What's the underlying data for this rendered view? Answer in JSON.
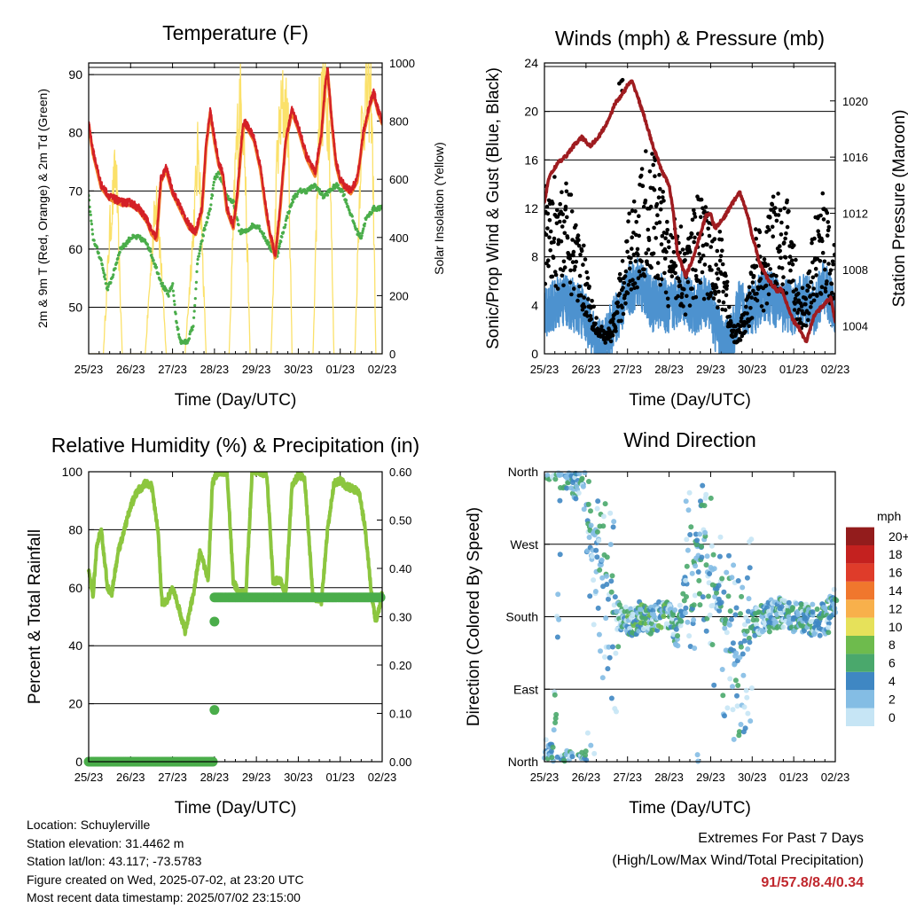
{
  "colors": {
    "t2m": "#d42027",
    "t9m": "#f3852d",
    "td": "#4aad4a",
    "solar": "#fbe16a",
    "wind": "#4d92cf",
    "gust": "#000000",
    "pressure": "#9f1c20",
    "rh": "#8cc63f",
    "precip": "#4aad4a",
    "extremes": "#c0272d"
  },
  "legend": {
    "title": "mph",
    "labels": [
      "0",
      "2",
      "4",
      "6",
      "8",
      "10",
      "12",
      "14",
      "16",
      "18",
      "20+"
    ],
    "colors": [
      "#c6e5f5",
      "#84bde4",
      "#3f87c3",
      "#4aa86c",
      "#6ebb4d",
      "#e6e15a",
      "#f8b04b",
      "#f0772d",
      "#df3c2a",
      "#c4211f",
      "#931c1c"
    ]
  },
  "chart_data": [
    {
      "type": "line",
      "title": "Temperature (F)",
      "xlabel": "Time (Day/UTC)",
      "ylabel": "2m & 9m T (Red, Orange) & 2m Td (Green)",
      "y2label": "Solar Insolation (Yellow)",
      "x_ticks": [
        "25/23",
        "26/23",
        "27/23",
        "28/23",
        "29/23",
        "30/23",
        "01/23",
        "02/23"
      ],
      "ylim": [
        42,
        92
      ],
      "y_ticks": [
        50,
        60,
        70,
        80,
        90
      ],
      "y2lim": [
        0,
        1000
      ],
      "y2_ticks": [
        0,
        200,
        400,
        600,
        800,
        1000
      ],
      "grid": true,
      "series": [
        {
          "name": "2m T",
          "x": [
            0,
            0.1,
            0.3,
            0.5,
            0.8,
            1.0,
            1.2,
            1.4,
            1.5,
            1.62,
            1.72,
            1.85,
            2.0,
            2.2,
            2.4,
            2.55,
            2.7,
            2.8,
            2.9,
            3.0,
            3.1,
            3.2,
            3.3,
            3.45,
            3.55,
            3.65,
            3.7,
            3.8,
            3.95,
            4.1,
            4.25,
            4.35,
            4.45,
            4.55,
            4.7,
            4.85,
            5.0,
            5.2,
            5.4,
            5.55,
            5.65,
            5.7,
            5.8,
            5.9,
            6.0,
            6.1,
            6.25,
            6.4,
            6.55,
            6.7,
            6.8,
            6.9,
            7.0
          ],
          "y": [
            82,
            77,
            71,
            69,
            68,
            68,
            67,
            65,
            63,
            62,
            72,
            74,
            70,
            67,
            64,
            63,
            67,
            78,
            84,
            79,
            75,
            73,
            67,
            64,
            70,
            79,
            82,
            81,
            79,
            74,
            66,
            62,
            59,
            66,
            79,
            84,
            81,
            76,
            73,
            80,
            89,
            91,
            82,
            75,
            72,
            71,
            70,
            72,
            80,
            85,
            87,
            84,
            82
          ]
        },
        {
          "name": "9m T",
          "x": [
            0,
            0.5,
            1.0,
            1.5,
            2.0,
            2.5,
            3.0,
            3.5,
            4.0,
            4.5,
            5.0,
            5.5,
            6.0,
            6.5,
            7.0
          ],
          "y": [
            81,
            70,
            69,
            64,
            71,
            64,
            80,
            65,
            80,
            60,
            82,
            74,
            72,
            79,
            82
          ]
        },
        {
          "name": "2m Td",
          "x": [
            0,
            0.1,
            0.2,
            0.3,
            0.45,
            0.6,
            0.75,
            0.9,
            1.0,
            1.2,
            1.4,
            1.6,
            1.75,
            1.9,
            2.0,
            2.1,
            2.2,
            2.35,
            2.5,
            2.6,
            2.75,
            2.9,
            3.0,
            3.1,
            3.3,
            3.45,
            3.6,
            3.75,
            3.9,
            4.05,
            4.2,
            4.35,
            4.5,
            4.6,
            4.75,
            4.9,
            5.05,
            5.2,
            5.4,
            5.6,
            5.75,
            5.9,
            6.05,
            6.2,
            6.3,
            6.4,
            6.5,
            6.6,
            6.8,
            7.0
          ],
          "y": [
            69,
            62,
            60,
            58,
            53,
            56,
            60,
            61,
            62,
            62,
            61,
            57,
            54,
            52,
            54,
            47,
            44,
            44,
            47,
            58,
            63,
            67,
            72,
            73,
            69,
            68,
            63,
            63,
            64,
            64,
            62,
            60,
            59,
            62,
            66,
            69,
            70,
            70,
            71,
            69,
            70,
            71,
            70,
            67,
            65,
            63,
            62,
            65,
            67,
            67
          ]
        },
        {
          "name": "Solar",
          "x": [
            0,
            0.35,
            0.5,
            0.65,
            0.8,
            1.0,
            1.35,
            1.5,
            1.62,
            1.85,
            2.0,
            2.3,
            2.48,
            2.62,
            2.8,
            3.0,
            3.35,
            3.5,
            3.6,
            3.7,
            3.85,
            4.0,
            4.35,
            4.5,
            4.62,
            4.75,
            4.85,
            5.0,
            5.35,
            5.5,
            5.62,
            5.73,
            5.85,
            6.0,
            6.35,
            6.5,
            6.62,
            6.75,
            6.85,
            7.0
          ],
          "y": [
            0,
            0,
            450,
            700,
            0,
            0,
            0,
            360,
            610,
            0,
            0,
            0,
            420,
            780,
            0,
            0,
            0,
            700,
            940,
            860,
            0,
            0,
            0,
            740,
            920,
            880,
            0,
            0,
            0,
            900,
            960,
            880,
            0,
            0,
            0,
            820,
            960,
            950,
            0,
            0
          ]
        }
      ]
    },
    {
      "type": "scatter",
      "title": "Winds (mph) & Pressure (mb)",
      "xlabel": "Time (Day/UTC)",
      "ylabel": "Sonic/Prop Wind & Gust (Blue, Black)",
      "y2label": "Station Pressure (Maroon)",
      "x_ticks": [
        "25/23",
        "26/23",
        "27/23",
        "28/23",
        "29/23",
        "30/23",
        "01/23",
        "02/23"
      ],
      "ylim": [
        0,
        24
      ],
      "y_ticks": [
        0,
        4,
        8,
        12,
        16,
        20,
        24
      ],
      "y2lim": [
        1002,
        1022.7
      ],
      "y2_ticks": [
        1004,
        1008,
        1012,
        1016,
        1020
      ],
      "grid": true,
      "series": [
        {
          "name": "Wind",
          "x": [
            0,
            0.5,
            1.0,
            1.2,
            1.4,
            1.6,
            2.0,
            2.3,
            2.6,
            2.8,
            3.0,
            3.3,
            3.6,
            3.9,
            4.1,
            4.3,
            4.5,
            4.7,
            5.0,
            5.3,
            5.5,
            5.7,
            6.0,
            6.3,
            6.5,
            6.7,
            7.0
          ],
          "y": [
            3.5,
            4.5,
            3.2,
            1.0,
            0.5,
            2.0,
            5.0,
            6.0,
            4.0,
            4.5,
            3.5,
            5.0,
            3.5,
            4.5,
            2.5,
            0.8,
            1.2,
            4.0,
            3.5,
            5.0,
            4.5,
            4.0,
            3.8,
            4.5,
            3.5,
            5.5,
            4.0
          ]
        },
        {
          "name": "Gust",
          "x": [
            0,
            0.3,
            0.6,
            0.9,
            1.1,
            1.3,
            1.5,
            1.7,
            2.0,
            2.2,
            2.5,
            2.8,
            3.0,
            3.2,
            3.4,
            3.7,
            4.0,
            4.3,
            4.5,
            4.7,
            4.9,
            5.1,
            5.3,
            5.5,
            5.7,
            5.9,
            6.1,
            6.3,
            6.5,
            6.7,
            6.9,
            7.0
          ],
          "y": [
            11,
            12,
            11,
            8,
            5,
            2,
            1.5,
            3,
            9,
            11,
            14,
            12,
            8,
            10,
            7,
            11,
            9,
            8,
            2,
            2,
            4,
            9,
            7,
            12,
            11,
            10,
            5,
            4,
            9,
            11,
            8,
            7
          ]
        },
        {
          "name": "Pressure",
          "x": [
            0,
            0.1,
            0.3,
            0.5,
            0.7,
            0.9,
            1.1,
            1.3,
            1.5,
            1.7,
            1.9,
            2.0,
            2.1,
            2.2,
            2.4,
            2.6,
            2.8,
            3.0,
            3.1,
            3.2,
            3.4,
            3.6,
            3.8,
            3.9,
            4.0,
            4.1,
            4.3,
            4.5,
            4.7,
            4.9,
            5.0,
            5.2,
            5.4,
            5.6,
            5.7,
            5.8,
            6.0,
            6.1,
            6.3,
            6.5,
            6.7,
            6.9,
            7.0
          ],
          "y": [
            1012.7,
            1014.5,
            1015.5,
            1016.0,
            1016.8,
            1017.4,
            1016.8,
            1017.4,
            1018.4,
            1019.8,
            1020.6,
            1021.1,
            1021.4,
            1020.7,
            1018.9,
            1016.9,
            1015.2,
            1014.0,
            1012.1,
            1009.2,
            1007.5,
            1009.0,
            1011.0,
            1011.9,
            1012.0,
            1010.9,
            1011.6,
            1012.6,
            1013.5,
            1011.8,
            1010.4,
            1008.3,
            1007.2,
            1006.5,
            1006.6,
            1005.8,
            1004.3,
            1004.0,
            1002.8,
            1004.8,
            1005.4,
            1006.0,
            1004.2
          ]
        }
      ]
    },
    {
      "type": "line",
      "title": "Relative Humidity (%) & Precipitation (in)",
      "xlabel": "Time (Day/UTC)",
      "ylabel": "Percent & Total Rainfall",
      "x_ticks": [
        "25/23",
        "26/23",
        "27/23",
        "28/23",
        "29/23",
        "30/23",
        "01/23",
        "02/23"
      ],
      "ylim": [
        0,
        100
      ],
      "y_ticks": [
        0,
        20,
        40,
        60,
        80,
        100
      ],
      "y2lim": [
        0,
        0.6
      ],
      "y2_ticks": [
        "0.00",
        "0.10",
        "0.20",
        "0.30",
        "0.40",
        "0.50",
        "0.60"
      ],
      "grid": true,
      "series": [
        {
          "name": "RH",
          "x": [
            0,
            0.1,
            0.2,
            0.3,
            0.45,
            0.55,
            0.7,
            0.85,
            1.0,
            1.15,
            1.35,
            1.5,
            1.65,
            1.75,
            1.85,
            2.0,
            2.15,
            2.3,
            2.5,
            2.65,
            2.75,
            2.85,
            2.95,
            3.05,
            3.2,
            3.3,
            3.45,
            3.6,
            3.75,
            3.9,
            4.1,
            4.25,
            4.4,
            4.55,
            4.7,
            4.85,
            5.0,
            5.15,
            5.35,
            5.55,
            5.7,
            5.85,
            6.0,
            6.15,
            6.3,
            6.45,
            6.6,
            6.75,
            6.85,
            7.0
          ],
          "y": [
            66,
            57,
            75,
            80,
            60,
            58,
            72,
            80,
            88,
            93,
            96,
            95,
            80,
            55,
            55,
            60,
            53,
            45,
            58,
            72,
            68,
            63,
            96,
            99,
            100,
            100,
            62,
            58,
            58,
            100,
            100,
            99,
            62,
            63,
            58,
            95,
            99,
            98,
            57,
            55,
            80,
            96,
            97,
            95,
            94,
            93,
            80,
            57,
            48,
            58
          ]
        },
        {
          "name": "Precipitation",
          "x": [
            0,
            1.0,
            2.0,
            3.0,
            3.01,
            3.02,
            3.03,
            4.0,
            5.0,
            6.0,
            7.0
          ],
          "y": [
            0,
            0,
            0,
            0,
            0.11,
            0.29,
            0.34,
            0.34,
            0.34,
            0.34,
            0.34
          ]
        }
      ]
    },
    {
      "type": "scatter",
      "title": "Wind Direction",
      "xlabel": "Time (Day/UTC)",
      "ylabel": "Direction (Colored By Speed)",
      "x_ticks": [
        "25/23",
        "26/23",
        "27/23",
        "28/23",
        "29/23",
        "30/23",
        "01/23",
        "02/23"
      ],
      "y_ticks": [
        "North",
        "East",
        "South",
        "West",
        "North"
      ],
      "ylim": [
        0,
        360
      ],
      "grid": true,
      "series": [
        {
          "name": "Direction",
          "x": [
            0,
            0.2,
            0.4,
            0.6,
            0.9,
            1.1,
            1.5,
            1.7,
            2.0,
            2.3,
            2.6,
            2.9,
            3.2,
            3.5,
            3.8,
            4.1,
            4.5,
            4.8,
            5.0,
            5.3,
            5.6,
            5.9,
            6.2,
            6.5,
            6.8,
            7.0
          ],
          "y": [
            10,
            6,
            355,
            355,
            330,
            300,
            200,
            180,
            175,
            180,
            175,
            185,
            160,
            250,
            270,
            210,
            140,
            150,
            170,
            180,
            185,
            180,
            180,
            175,
            180,
            200
          ]
        }
      ]
    }
  ],
  "info": {
    "location": "Location: Schuylerville",
    "elevation": "Station elevation: 31.4462 m",
    "latlon": "Station lat/lon: 43.117; -73.5783",
    "created": "Figure created on Wed, 2025-07-02, at 23:20 UTC",
    "recent": "Most recent data timestamp: 2025/07/02 23:15:00"
  },
  "extremes": {
    "title": "Extremes For Past 7 Days",
    "subtitle": "(High/Low/Max Wind/Total Precipitation)",
    "values": "91/57.8/8.4/0.34"
  }
}
